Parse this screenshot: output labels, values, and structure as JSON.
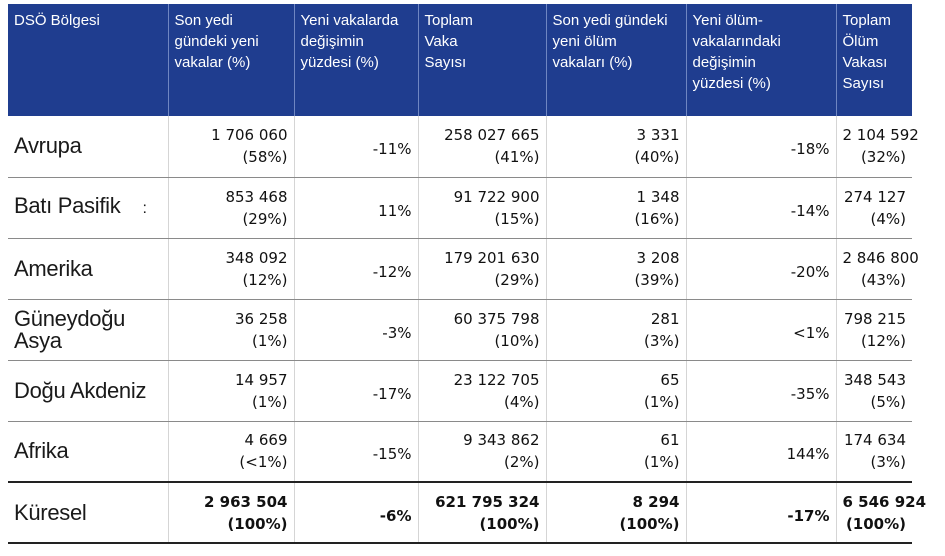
{
  "headers": [
    "DSÖ Bölgesi",
    "Son yedi\ngündeki yeni\nvakalar (%)",
    "Yeni vakalarda\ndeğişimin\nyüzdesi (%)",
    "Toplam\nVaka\nSayısı",
    "Son yedi gündeki\nyeni ölüm\nvakaları (%)",
    "Yeni ölüm-\nvakalarındaki\ndeğişimin\nyüzdesi (%)",
    "Toplam\nÖlüm Vakası\nSayısı"
  ],
  "rows": [
    {
      "region": "Avrupa",
      "new_cases": "1 706 060",
      "new_cases_pct": "(58%)",
      "case_change": "-11%",
      "total_cases": "258 027 665",
      "total_cases_pct": "(41%)",
      "new_deaths": "3 331",
      "new_deaths_pct": "(40%)",
      "death_change": "-18%",
      "total_deaths": "2 104 592",
      "total_deaths_pct": "(32%)"
    },
    {
      "region": "Batı Pasifik",
      "marker": ":",
      "new_cases": "853 468",
      "new_cases_pct": "(29%)",
      "case_change": "11%",
      "total_cases": "91 722 900",
      "total_cases_pct": "(15%)",
      "new_deaths": "1 348",
      "new_deaths_pct": "(16%)",
      "death_change": "-14%",
      "total_deaths": "274 127",
      "total_deaths_pct": "(4%)"
    },
    {
      "region": "Amerika",
      "new_cases": "348 092",
      "new_cases_pct": "(12%)",
      "case_change": "-12%",
      "total_cases": "179 201 630",
      "total_cases_pct": "(29%)",
      "new_deaths": "3 208",
      "new_deaths_pct": "(39%)",
      "death_change": "-20%",
      "total_deaths": "2 846 800",
      "total_deaths_pct": "(43%)"
    },
    {
      "region": "Güneydoğu Asya",
      "new_cases": "36 258",
      "new_cases_pct": "(1%)",
      "case_change": "-3%",
      "total_cases": "60 375 798",
      "total_cases_pct": "(10%)",
      "new_deaths": "281",
      "new_deaths_pct": "(3%)",
      "death_change": "<1%",
      "total_deaths": "798 215",
      "total_deaths_pct": "(12%)"
    },
    {
      "region": "Doğu Akdeniz",
      "new_cases": "14 957",
      "new_cases_pct": "(1%)",
      "case_change": "-17%",
      "total_cases": "23 122 705",
      "total_cases_pct": "(4%)",
      "new_deaths": "65",
      "new_deaths_pct": "(1%)",
      "death_change": "-35%",
      "total_deaths": "348 543",
      "total_deaths_pct": "(5%)"
    },
    {
      "region": "Afrika",
      "new_cases": "4 669",
      "new_cases_pct": "(<1%)",
      "case_change": "-15%",
      "total_cases": "9 343 862",
      "total_cases_pct": "(2%)",
      "new_deaths": "61",
      "new_deaths_pct": "(1%)",
      "death_change": "144%",
      "total_deaths": "174 634",
      "total_deaths_pct": "(3%)"
    }
  ],
  "total": {
    "region": "Küresel",
    "new_cases": "2 963 504",
    "new_cases_pct": "(100%)",
    "case_change": "-6%",
    "total_cases": "621 795 324",
    "total_cases_pct": "(100%)",
    "new_deaths": "8 294",
    "new_deaths_pct": "(100%)",
    "death_change": "-17%",
    "total_deaths": "6 546 924",
    "total_deaths_pct": "(100%)"
  },
  "colors": {
    "header_bg": "#1f3d8f",
    "header_text": "#ffffff"
  }
}
